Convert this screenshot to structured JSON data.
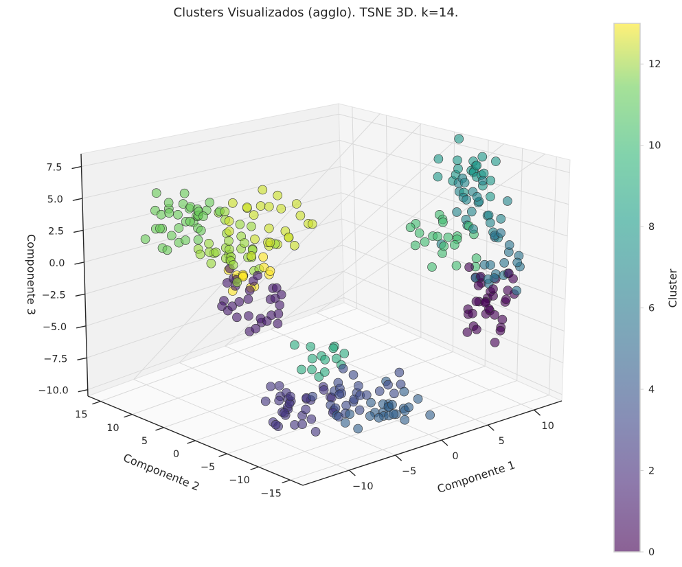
{
  "chart_data": {
    "type": "scatter",
    "title": "Clusters Visualizados (agglo). TSNE 3D. k=14.",
    "xlabel": "Componente 1",
    "ylabel": "Componente 2",
    "zlabel": "Componente 3",
    "xlim": [
      -15,
      13
    ],
    "ylim": [
      -17,
      17
    ],
    "zlim": [
      -10.5,
      8.5
    ],
    "x_ticks": [
      "−10",
      "−5",
      "0",
      "5",
      "10"
    ],
    "y_ticks": [
      "−15",
      "−10",
      "−5",
      "0",
      "5",
      "10",
      "15"
    ],
    "z_ticks": [
      "−10.0",
      "−7.5",
      "−5.0",
      "−2.5",
      "0.0",
      "2.5",
      "5.0",
      "7.5"
    ],
    "colorbar": {
      "label": "Cluster",
      "min": 0,
      "max": 13,
      "ticks": [
        "0",
        "2",
        "4",
        "6",
        "8",
        "10",
        "12"
      ],
      "colormap": "viridis"
    },
    "grid": true,
    "clusters": [
      {
        "cluster": 0,
        "center": [
          7,
          -14,
          -2
        ],
        "spread": [
          3,
          3,
          2.2
        ],
        "count": 34
      },
      {
        "cluster": 1,
        "center": [
          -7,
          3,
          -2
        ],
        "spread": [
          3,
          3,
          2
        ],
        "count": 30
      },
      {
        "cluster": 2,
        "center": [
          -8,
          -6,
          -8
        ],
        "spread": [
          3,
          3,
          1.5
        ],
        "count": 32
      },
      {
        "cluster": 3,
        "center": [
          -4,
          -10,
          -7.5
        ],
        "spread": [
          3,
          3,
          1.5
        ],
        "count": 26
      },
      {
        "cluster": 4,
        "center": [
          -3,
          -13,
          -8
        ],
        "spread": [
          3,
          3,
          1.2
        ],
        "count": 26
      },
      {
        "cluster": 5,
        "center": [
          8,
          -14,
          1
        ],
        "spread": [
          2.5,
          2.5,
          2
        ],
        "count": 20
      },
      {
        "cluster": 6,
        "center": [
          9,
          -10,
          4
        ],
        "spread": [
          2.5,
          2.5,
          2
        ],
        "count": 24
      },
      {
        "cluster": 7,
        "center": [
          10,
          -7,
          6
        ],
        "spread": [
          2.5,
          2.5,
          2
        ],
        "count": 22
      },
      {
        "cluster": 8,
        "center": [
          -6,
          -7,
          -5
        ],
        "spread": [
          2.5,
          2.5,
          1.5
        ],
        "count": 14
      },
      {
        "cluster": 9,
        "center": [
          6,
          -8,
          2
        ],
        "spread": [
          3,
          3,
          2
        ],
        "count": 22
      },
      {
        "cluster": 10,
        "center": [
          -8,
          12,
          3
        ],
        "spread": [
          3,
          3,
          2
        ],
        "count": 36
      },
      {
        "cluster": 11,
        "center": [
          -6,
          8,
          1
        ],
        "spread": [
          3,
          3,
          2
        ],
        "count": 34
      },
      {
        "cluster": 12,
        "center": [
          -3,
          5,
          3
        ],
        "spread": [
          3,
          3,
          2
        ],
        "count": 26
      },
      {
        "cluster": 13,
        "center": [
          -5,
          6,
          -1
        ],
        "spread": [
          2,
          2,
          1.5
        ],
        "count": 12
      }
    ]
  }
}
